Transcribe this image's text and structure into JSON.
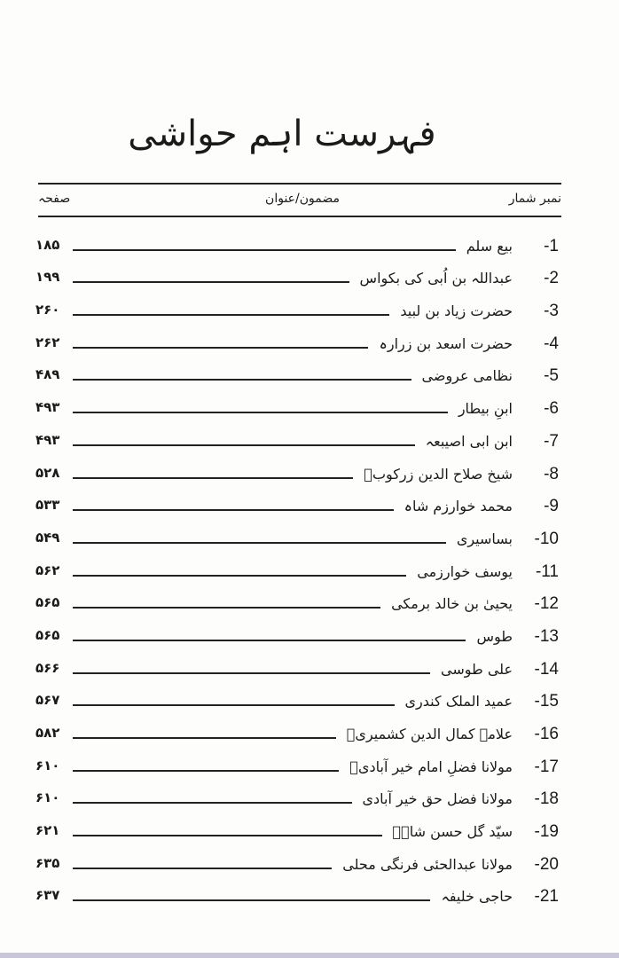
{
  "title": "فہرست اہم حواشی",
  "header": {
    "serial": "نمبر شمار",
    "subject": "مضمون/عنوان",
    "page": "صفحہ"
  },
  "entries": [
    {
      "num": "-1",
      "name": "بیع سلم",
      "page": "۱۸۵"
    },
    {
      "num": "-2",
      "name": "عبداللہ بن اُبی کی بکواس",
      "page": "۱۹۹"
    },
    {
      "num": "-3",
      "name": "حضرت زیاد بن لبید",
      "page": "۲۶۰"
    },
    {
      "num": "-4",
      "name": "حضرت اسعد بن زرارہ",
      "page": "۲۶۲"
    },
    {
      "num": "-5",
      "name": "نظامی عروضی",
      "page": "۴۸۹"
    },
    {
      "num": "-6",
      "name": "ابنِ بیطار",
      "page": "۴۹۳"
    },
    {
      "num": "-7",
      "name": "ابن ابی اصیبعہ",
      "page": "۴۹۳"
    },
    {
      "num": "-8",
      "name": "شیخ صلاح الدین زرکوبؒ",
      "page": "۵۲۸"
    },
    {
      "num": "-9",
      "name": "محمد خوارزم شاہ",
      "page": "۵۳۳"
    },
    {
      "num": "-10",
      "name": "بساسیری",
      "page": "۵۴۹"
    },
    {
      "num": "-11",
      "name": "یوسف خوارزمی",
      "page": "۵۶۲"
    },
    {
      "num": "-12",
      "name": "یحییٰ بن خالد برمکی",
      "page": "۵۶۵"
    },
    {
      "num": "-13",
      "name": "طوس",
      "page": "۵۶۵"
    },
    {
      "num": "-14",
      "name": "علی طوسی",
      "page": "۵۶۶"
    },
    {
      "num": "-15",
      "name": "عمید الملک کندری",
      "page": "۵۶۷"
    },
    {
      "num": "-16",
      "name": "علامہ کمال الدین کشمیریؒ",
      "page": "۵۸۲"
    },
    {
      "num": "-17",
      "name": "مولانا فضلِ امام خیر آبادیؒ",
      "page": "۶۱۰"
    },
    {
      "num": "-18",
      "name": "مولانا فضل حق خیر آبادی",
      "page": "۶۱۰"
    },
    {
      "num": "-19",
      "name": "سیّد گل حسن شاہؒ",
      "page": "۶۲۱"
    },
    {
      "num": "-20",
      "name": "مولانا عبدالحئی فرنگی محلی",
      "page": "۶۳۵"
    },
    {
      "num": "-21",
      "name": "حاجی خلیفہ",
      "page": "۶۳۷"
    }
  ]
}
